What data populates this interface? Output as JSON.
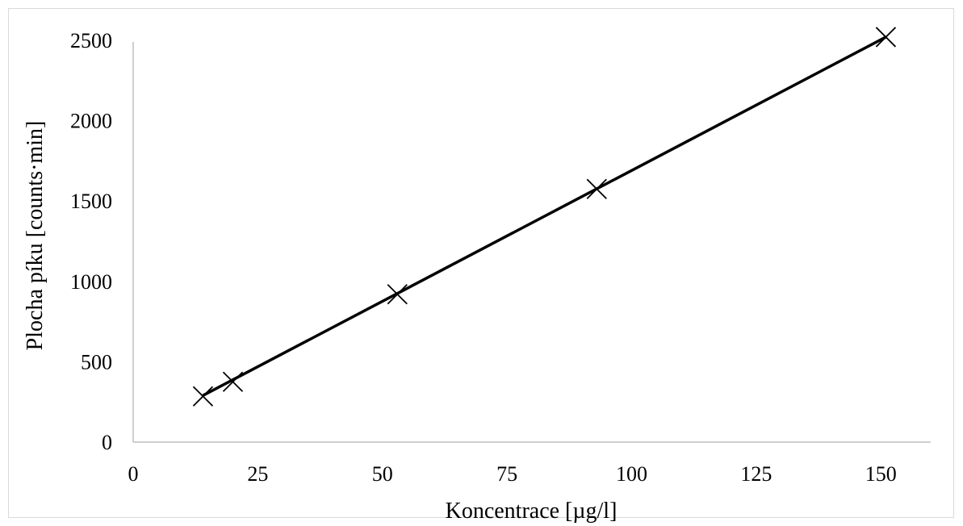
{
  "chart_data": {
    "type": "scatter",
    "title": "",
    "xlabel": "Koncentrace [µg/l]",
    "ylabel": "Plocha píku [counts·min]",
    "xlim": [
      0,
      160
    ],
    "ylim": [
      0,
      2600
    ],
    "x_ticks": [
      0,
      25,
      50,
      75,
      100,
      125,
      150
    ],
    "y_ticks": [
      0,
      500,
      1000,
      1500,
      2000,
      2500
    ],
    "grid": false,
    "legend": "none",
    "series": [
      {
        "marker": "x",
        "x": [
          14,
          20,
          53,
          93,
          151
        ],
        "y": [
          285,
          375,
          920,
          1575,
          2520
        ]
      }
    ],
    "trendline": {
      "type": "linear",
      "x_range": [
        14,
        151
      ],
      "y_range": [
        290,
        2520
      ]
    },
    "colors": {
      "axis": "#bfbfbf",
      "marker": "#000000",
      "trendline": "#000000",
      "frame": "#d9d9d9"
    }
  }
}
